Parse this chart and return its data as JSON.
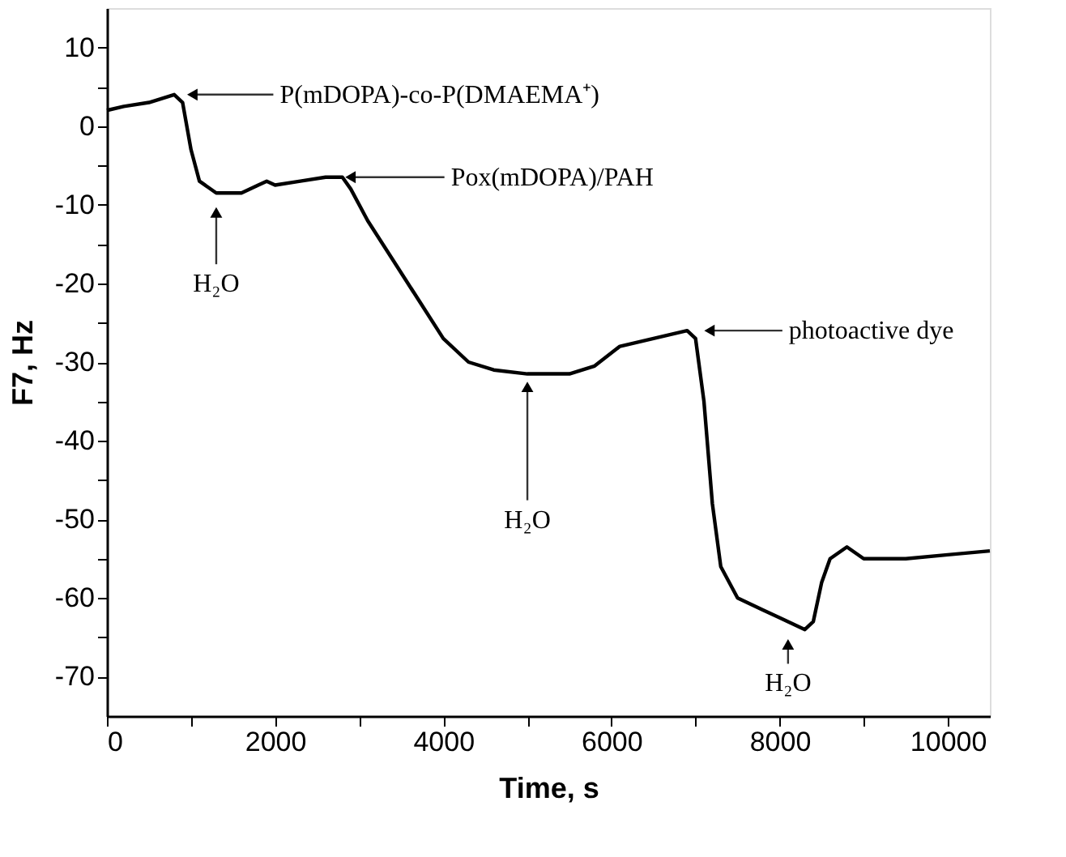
{
  "chart_data": {
    "type": "line",
    "xlabel": "Time, s",
    "ylabel": "F7, Hz",
    "xlim": [
      0,
      10500
    ],
    "ylim": [
      -75,
      15
    ],
    "xticks": [
      0,
      {
        "value": 1000,
        "label": null
      },
      {
        "value": 2000,
        "label": "2000"
      },
      {
        "value": 3000,
        "label": null
      },
      {
        "value": 4000,
        "label": "4000"
      },
      {
        "value": 5000,
        "label": null
      },
      {
        "value": 6000,
        "label": "6000"
      },
      {
        "value": 7000,
        "label": null
      },
      {
        "value": 8000,
        "label": "8000"
      },
      {
        "value": 9000,
        "label": null
      },
      {
        "value": 10000,
        "label": "10000"
      }
    ],
    "yticks": [
      -70,
      {
        "value": -65,
        "label": null
      },
      -60,
      {
        "value": -55,
        "label": null
      },
      -50,
      {
        "value": -45,
        "label": null
      },
      -40,
      {
        "value": -35,
        "label": null
      },
      -30,
      {
        "value": -25,
        "label": null
      },
      -20,
      {
        "value": -15,
        "label": null
      },
      -10,
      {
        "value": -5,
        "label": null
      },
      0,
      {
        "value": 5,
        "label": null
      },
      10
    ],
    "grid": false,
    "marker": "none",
    "line_style": "solid",
    "x": [
      0,
      200,
      500,
      800,
      900,
      1000,
      1100,
      1300,
      1600,
      1800,
      1900,
      2000,
      2300,
      2600,
      2800,
      2900,
      3100,
      3400,
      3700,
      4000,
      4300,
      4600,
      5000,
      5500,
      5800,
      6100,
      6500,
      6900,
      7000,
      7100,
      7200,
      7300,
      7500,
      7800,
      8100,
      8300,
      8400,
      8500,
      8600,
      8800,
      9000,
      9500,
      10000,
      10500
    ],
    "series": [
      {
        "color": "#000000",
        "values": [
          2,
          2.5,
          3,
          4,
          3,
          -3,
          -7,
          -8.5,
          -8.5,
          -7.5,
          -7,
          -7.5,
          -7,
          -6.5,
          -6.5,
          -8,
          -12,
          -17,
          -22,
          -27,
          -30,
          -31,
          -31.5,
          -31.5,
          -30.5,
          -28,
          -27,
          -26,
          -27,
          -35,
          -48,
          -56,
          -60,
          -61.5,
          -63,
          -64,
          -63,
          -58,
          -55,
          -53.5,
          -55,
          -55,
          -54.5,
          -54
        ]
      }
    ],
    "annotations": [
      {
        "text": "P(mDOPA)-co-P(DMAEMA⁺)",
        "x": 900,
        "y": 4
      },
      {
        "text": "Pox(mDOPA)/PAH",
        "x": 2800,
        "y": -6.5
      },
      {
        "text": "photoactive dye",
        "x": 7050,
        "y": -26
      },
      {
        "text": "H₂O",
        "x": 1300,
        "y": -8.5
      },
      {
        "text": "H₂O",
        "x": 5000,
        "y": -31.5
      },
      {
        "text": "H₂O",
        "x": 8100,
        "y": -63
      }
    ]
  }
}
